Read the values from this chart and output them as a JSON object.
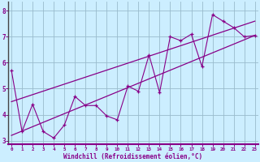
{
  "xlabel": "Windchill (Refroidissement éolien,°C)",
  "bg_color": "#cceeff",
  "line_color": "#880088",
  "grid_color": "#99bbcc",
  "x_data": [
    0,
    1,
    2,
    3,
    4,
    5,
    6,
    7,
    8,
    9,
    10,
    11,
    12,
    13,
    14,
    15,
    16,
    17,
    18,
    19,
    20,
    21,
    22,
    23
  ],
  "y_zigzag": [
    5.7,
    3.35,
    4.4,
    3.35,
    3.1,
    3.6,
    4.7,
    4.35,
    4.35,
    3.95,
    3.8,
    5.1,
    4.9,
    6.3,
    4.85,
    7.0,
    6.85,
    7.1,
    5.85,
    7.85,
    7.6,
    7.35,
    7.0,
    7.05
  ],
  "trend1_x": [
    0,
    23
  ],
  "trend1_y": [
    3.2,
    7.05
  ],
  "trend2_x": [
    0,
    23
  ],
  "trend2_y": [
    4.5,
    7.6
  ],
  "xlim": [
    -0.3,
    23.3
  ],
  "ylim": [
    2.85,
    8.35
  ],
  "xticks": [
    0,
    1,
    2,
    3,
    4,
    5,
    6,
    7,
    8,
    9,
    10,
    11,
    12,
    13,
    14,
    15,
    16,
    17,
    18,
    19,
    20,
    21,
    22,
    23
  ],
  "yticks": [
    3,
    4,
    5,
    6,
    7,
    8
  ],
  "spine_color": "#880088",
  "tick_color": "#880088"
}
